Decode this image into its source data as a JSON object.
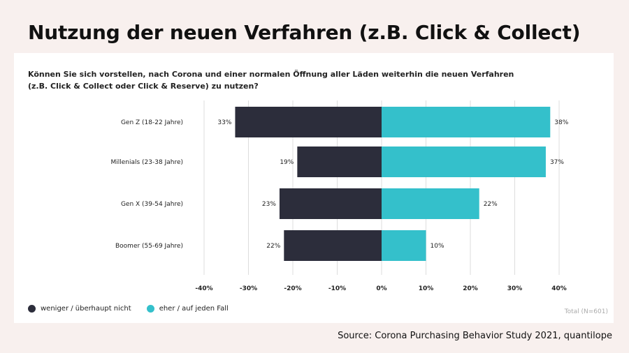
{
  "page": {
    "title": "Nutzung der neuen Verfahren (z.B. Click & Collect)",
    "source": "Source: Corona Purchasing Behavior Study 2021, quantilope"
  },
  "chart_data": {
    "type": "bar",
    "orientation": "horizontal-diverging",
    "question_lines": [
      "Können Sie sich vorstellen, nach Corona und einer normalen Öffnung aller Läden weiterhin die neuen Verfahren",
      "(z.B. Click & Collect oder Click & Reserve) zu nutzen?"
    ],
    "categories": [
      "Gen Z  (18-22 Jahre)",
      "Millenials  (23-38 Jahre)",
      "Gen X  (39-54 Jahre)",
      "Boomer  (55-69 Jahre)"
    ],
    "series": [
      {
        "name": "weniger / überhaupt nicht",
        "values": [
          33,
          19,
          23,
          22
        ],
        "labels": [
          "33%",
          "19%",
          "23%",
          "22%"
        ],
        "color": "#2c2d3b",
        "direction": "negative"
      },
      {
        "name": "eher / auf jeden Fall",
        "values": [
          38,
          37,
          22,
          10
        ],
        "labels": [
          "38%",
          "37%",
          "22%",
          "10%"
        ],
        "color": "#34c0cb",
        "direction": "positive"
      }
    ],
    "xlim": [
      -40,
      40
    ],
    "x_ticks": [
      -40,
      -30,
      -20,
      -10,
      0,
      10,
      20,
      30,
      40
    ],
    "x_tick_labels": [
      "-40%",
      "-30%",
      "-20%",
      "-10%",
      "0%",
      "10%",
      "20%",
      "30%",
      "40%"
    ],
    "grid": true,
    "legend_position": "bottom-left",
    "note": "Total (N=601)"
  }
}
